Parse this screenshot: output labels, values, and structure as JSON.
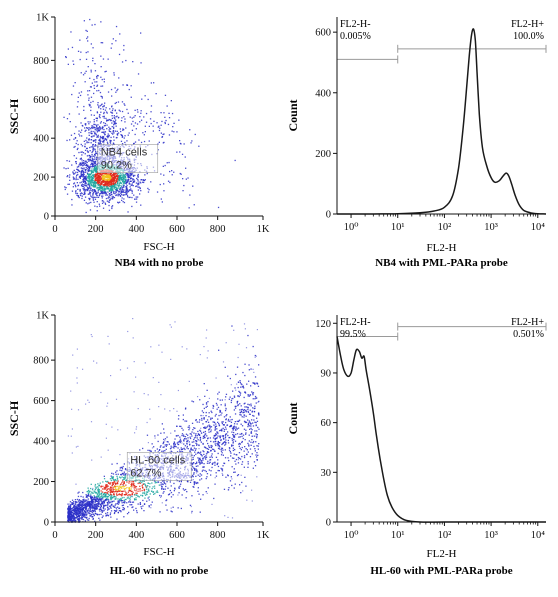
{
  "colors": {
    "axis": "#111111",
    "gate": "#9a9a9a",
    "gate_label_bg": "#ffffff",
    "histogram_line": "#1a1a1a",
    "density_low": "#2b2fc8",
    "density_mid": "#1fa6a0",
    "density_high": "#e0291b",
    "density_peak": "#f2c21a"
  },
  "chart_data": [
    {
      "id": "nb4-scatter",
      "type": "scatter",
      "subtype": "density-dot-plot",
      "xlabel": "FSC-H",
      "ylabel": "SSC-H",
      "caption": "NB4 with no probe",
      "xlim": [
        0,
        1023
      ],
      "ylim": [
        0,
        1023
      ],
      "x_ticks": [
        0,
        200,
        400,
        600,
        800,
        1023
      ],
      "x_tick_labels": [
        "0",
        "200",
        "400",
        "600",
        "800",
        "1K"
      ],
      "y_ticks": [
        0,
        200,
        400,
        600,
        800,
        1023
      ],
      "y_tick_labels": [
        "0",
        "200",
        "400",
        "600",
        "800",
        "1K"
      ],
      "populations": [
        {
          "center": [
            250,
            200
          ],
          "spread": [
            75,
            55
          ],
          "weight": 0.62
        },
        {
          "center": [
            225,
            360
          ],
          "spread": [
            55,
            120
          ],
          "weight": 0.22
        },
        {
          "center": [
            200,
            620
          ],
          "spread": [
            90,
            220
          ],
          "weight": 0.08
        },
        {
          "center": [
            420,
            380
          ],
          "spread": [
            140,
            160
          ],
          "weight": 0.08
        }
      ],
      "gate": {
        "name": "NB4 cells",
        "percent": "90.2%",
        "anchor": [
          225,
          310
        ]
      }
    },
    {
      "id": "nb4-histogram",
      "type": "line",
      "subtype": "histogram",
      "xlabel": "FL2-H",
      "ylabel": "Count",
      "caption": "NB4 with PML-PARa probe",
      "xscale": "log",
      "xlim": [
        0.5,
        15000
      ],
      "ylim": [
        0,
        650
      ],
      "x_ticks": [
        1,
        10,
        100,
        1000,
        10000
      ],
      "x_tick_labels": [
        "10⁰",
        "10¹",
        "10²",
        "10³",
        "10⁴"
      ],
      "y_ticks": [
        0,
        200,
        400,
        600
      ],
      "y_tick_labels": [
        "0",
        "200",
        "400",
        "600"
      ],
      "curve": {
        "x": [
          0.5,
          1,
          3,
          10,
          30,
          60,
          100,
          150,
          200,
          250,
          300,
          340,
          380,
          420,
          460,
          500,
          560,
          650,
          800,
          1000,
          1200,
          1500,
          1800,
          2100,
          2400,
          2800,
          3300,
          4000,
          5000,
          7000,
          10000,
          15000
        ],
        "y": [
          0,
          0,
          0,
          1,
          4,
          10,
          22,
          60,
          150,
          280,
          420,
          520,
          590,
          610,
          570,
          470,
          330,
          220,
          160,
          120,
          105,
          110,
          125,
          135,
          125,
          95,
          60,
          30,
          12,
          4,
          1,
          0
        ]
      },
      "markers": [
        {
          "label": "FL2-H-",
          "percent": "0.005%",
          "range": [
            0.5,
            10
          ],
          "level": 510
        },
        {
          "label": "FL2-H+",
          "percent": "100.0%",
          "range": [
            10,
            15000
          ],
          "level": 545
        }
      ]
    },
    {
      "id": "hl60-scatter",
      "type": "scatter",
      "subtype": "density-dot-plot",
      "xlabel": "FSC-H",
      "ylabel": "SSC-H",
      "caption": "HL-60 with no probe",
      "xlim": [
        0,
        1023
      ],
      "ylim": [
        0,
        1023
      ],
      "x_ticks": [
        0,
        200,
        400,
        600,
        800,
        1023
      ],
      "x_tick_labels": [
        "0",
        "200",
        "400",
        "600",
        "800",
        "1K"
      ],
      "y_ticks": [
        0,
        200,
        400,
        600,
        800,
        1023
      ],
      "y_tick_labels": [
        "0",
        "200",
        "400",
        "600",
        "800",
        "1K"
      ],
      "trend": {
        "x_start": 60,
        "x_end": 1000,
        "y_at_start": 30,
        "slope": 0.52
      },
      "gate": {
        "name": "HL-60 cells",
        "percent": "62.7%",
        "anchor": [
          370,
          290
        ]
      }
    },
    {
      "id": "hl60-histogram",
      "type": "line",
      "subtype": "histogram",
      "xlabel": "FL2-H",
      "ylabel": "Count",
      "caption": "HL-60 with PML-PARa probe",
      "xscale": "log",
      "xlim": [
        0.5,
        15000
      ],
      "ylim": [
        0,
        125
      ],
      "x_ticks": [
        1,
        10,
        100,
        1000,
        10000
      ],
      "x_tick_labels": [
        "10⁰",
        "10¹",
        "10²",
        "10³",
        "10⁴"
      ],
      "y_ticks": [
        0,
        30,
        60,
        90,
        120
      ],
      "y_tick_labels": [
        "0",
        "30",
        "60",
        "90",
        "120"
      ],
      "curve": {
        "x": [
          0.5,
          0.6,
          0.7,
          0.85,
          1.0,
          1.15,
          1.3,
          1.5,
          1.7,
          1.9,
          2.1,
          2.5,
          3.0,
          3.5,
          4.2,
          5.0,
          6.0,
          7.5,
          10,
          15,
          30,
          100,
          1000,
          15000
        ],
        "y": [
          112,
          100,
          92,
          88,
          90,
          98,
          104,
          103,
          99,
          100,
          92,
          80,
          66,
          52,
          38,
          26,
          16,
          9,
          4,
          1,
          0,
          0,
          0,
          0
        ]
      },
      "markers": [
        {
          "label": "FL2-H-",
          "percent": "99.5%",
          "range": [
            0.5,
            10
          ],
          "level": 112
        },
        {
          "label": "FL2-H+",
          "percent": "0.501%",
          "range": [
            10,
            15000
          ],
          "level": 118
        }
      ]
    }
  ]
}
